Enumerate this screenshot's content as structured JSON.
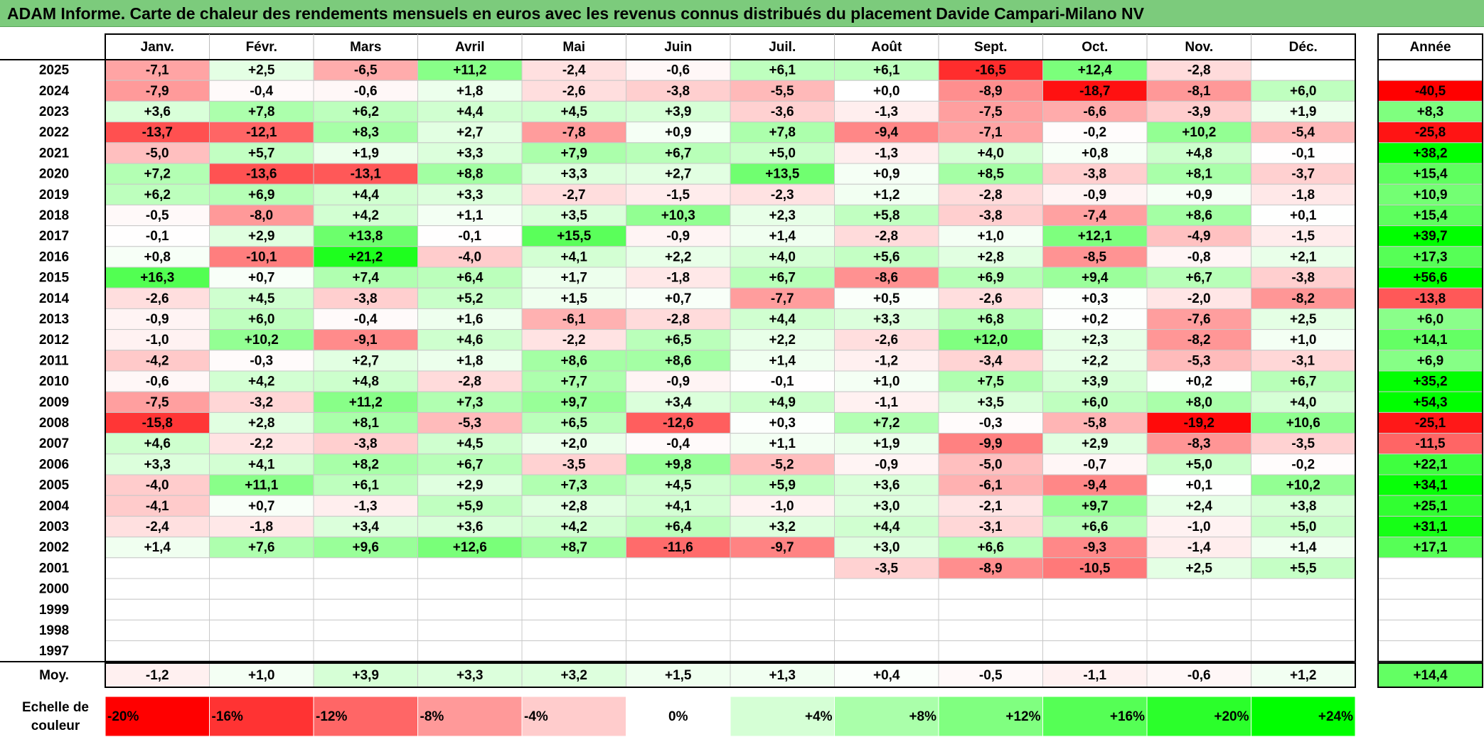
{
  "title": "ADAM Informe. Carte de chaleur des rendements mensuels en euros avec les revenus connus distribués du placement Davide Campari-Milano NV",
  "chart_data": {
    "type": "heatmap",
    "months": [
      "Janv.",
      "Févr.",
      "Mars",
      "Avril",
      "Mai",
      "Juin",
      "Juil.",
      "Août",
      "Sept.",
      "Oct.",
      "Nov.",
      "Déc."
    ],
    "year_label": "Année",
    "rows": [
      {
        "year": "2025",
        "values": [
          -7.1,
          2.5,
          -6.5,
          11.2,
          -2.4,
          -0.6,
          6.1,
          6.1,
          -16.5,
          12.4,
          -2.8,
          null
        ],
        "annual": null
      },
      {
        "year": "2024",
        "values": [
          -7.9,
          -0.4,
          -0.6,
          1.8,
          -2.6,
          -3.8,
          -5.5,
          0.0,
          -8.9,
          -18.7,
          -8.1,
          6.0
        ],
        "annual": -40.5
      },
      {
        "year": "2023",
        "values": [
          3.6,
          7.8,
          6.2,
          4.4,
          4.5,
          3.9,
          -3.6,
          -1.3,
          -7.5,
          -6.6,
          -3.9,
          1.9
        ],
        "annual": 8.3
      },
      {
        "year": "2022",
        "values": [
          -13.7,
          -12.1,
          8.3,
          2.7,
          -7.8,
          0.9,
          7.8,
          -9.4,
          -7.1,
          -0.2,
          10.2,
          -5.4
        ],
        "annual": -25.8
      },
      {
        "year": "2021",
        "values": [
          -5.0,
          5.7,
          1.9,
          3.3,
          7.9,
          6.7,
          5.0,
          -1.3,
          4.0,
          0.8,
          4.8,
          -0.1
        ],
        "annual": 38.2
      },
      {
        "year": "2020",
        "values": [
          7.2,
          -13.6,
          -13.1,
          8.8,
          3.3,
          2.7,
          13.5,
          0.9,
          8.5,
          -3.8,
          8.1,
          -3.7
        ],
        "annual": 15.4
      },
      {
        "year": "2019",
        "values": [
          6.2,
          6.9,
          4.4,
          3.3,
          -2.7,
          -1.5,
          -2.3,
          1.2,
          -2.8,
          -0.9,
          0.9,
          -1.8
        ],
        "annual": 10.9
      },
      {
        "year": "2018",
        "values": [
          -0.5,
          -8.0,
          4.2,
          1.1,
          3.5,
          10.3,
          2.3,
          5.8,
          -3.8,
          -7.4,
          8.6,
          0.1
        ],
        "annual": 15.4
      },
      {
        "year": "2017",
        "values": [
          -0.1,
          2.9,
          13.8,
          -0.1,
          15.5,
          -0.9,
          1.4,
          -2.8,
          1.0,
          12.1,
          -4.9,
          -1.5
        ],
        "annual": 39.7
      },
      {
        "year": "2016",
        "values": [
          0.8,
          -10.1,
          21.2,
          -4.0,
          4.1,
          2.2,
          4.0,
          5.6,
          2.8,
          -8.5,
          -0.8,
          2.1
        ],
        "annual": 17.3
      },
      {
        "year": "2015",
        "values": [
          16.3,
          0.7,
          7.4,
          6.4,
          1.7,
          -1.8,
          6.7,
          -8.6,
          6.9,
          9.4,
          6.7,
          -3.8
        ],
        "annual": 56.6
      },
      {
        "year": "2014",
        "values": [
          -2.6,
          4.5,
          -3.8,
          5.2,
          1.5,
          0.7,
          -7.7,
          0.5,
          -2.6,
          0.3,
          -2.0,
          -8.2
        ],
        "annual": -13.8
      },
      {
        "year": "2013",
        "values": [
          -0.9,
          6.0,
          -0.4,
          1.6,
          -6.1,
          -2.8,
          4.4,
          3.3,
          6.8,
          0.2,
          -7.6,
          2.5
        ],
        "annual": 6.0
      },
      {
        "year": "2012",
        "values": [
          -1.0,
          10.2,
          -9.1,
          4.6,
          -2.2,
          6.5,
          2.2,
          -2.6,
          12.0,
          2.3,
          -8.2,
          1.0
        ],
        "annual": 14.1
      },
      {
        "year": "2011",
        "values": [
          -4.2,
          -0.3,
          2.7,
          1.8,
          8.6,
          8.6,
          1.4,
          -1.2,
          -3.4,
          2.2,
          -5.3,
          -3.1
        ],
        "annual": 6.9
      },
      {
        "year": "2010",
        "values": [
          -0.6,
          4.2,
          4.8,
          -2.8,
          7.7,
          -0.9,
          -0.1,
          1.0,
          7.5,
          3.9,
          0.2,
          6.7
        ],
        "annual": 35.2
      },
      {
        "year": "2009",
        "values": [
          -7.5,
          -3.2,
          11.2,
          7.3,
          9.7,
          3.4,
          4.9,
          -1.1,
          3.5,
          6.0,
          8.0,
          4.0
        ],
        "annual": 54.3
      },
      {
        "year": "2008",
        "values": [
          -15.8,
          2.8,
          8.1,
          -5.3,
          6.5,
          -12.6,
          0.3,
          7.2,
          -0.3,
          -5.8,
          -19.2,
          10.6
        ],
        "annual": -25.1
      },
      {
        "year": "2007",
        "values": [
          4.6,
          -2.2,
          -3.8,
          4.5,
          2.0,
          -0.4,
          1.1,
          1.9,
          -9.9,
          2.9,
          -8.3,
          -3.5
        ],
        "annual": -11.5
      },
      {
        "year": "2006",
        "values": [
          3.3,
          4.1,
          8.2,
          6.7,
          -3.5,
          9.8,
          -5.2,
          -0.9,
          -5.0,
          -0.7,
          5.0,
          -0.2
        ],
        "annual": 22.1
      },
      {
        "year": "2005",
        "values": [
          -4.0,
          11.1,
          6.1,
          2.9,
          7.3,
          4.5,
          5.9,
          3.6,
          -6.1,
          -9.4,
          0.1,
          10.2
        ],
        "annual": 34.1
      },
      {
        "year": "2004",
        "values": [
          -4.1,
          0.7,
          -1.3,
          5.9,
          2.8,
          4.1,
          -1.0,
          3.0,
          -2.1,
          9.7,
          2.4,
          3.8
        ],
        "annual": 25.1
      },
      {
        "year": "2003",
        "values": [
          -2.4,
          -1.8,
          3.4,
          3.6,
          4.2,
          6.4,
          3.2,
          4.4,
          -3.1,
          6.6,
          -1.0,
          5.0
        ],
        "annual": 31.1
      },
      {
        "year": "2002",
        "values": [
          1.4,
          7.6,
          9.6,
          12.6,
          8.7,
          -11.6,
          -9.7,
          3.0,
          6.6,
          -9.3,
          -1.4,
          1.4
        ],
        "annual": 17.1
      },
      {
        "year": "2001",
        "values": [
          null,
          null,
          null,
          null,
          null,
          null,
          null,
          -3.5,
          -8.9,
          -10.5,
          2.5,
          5.5
        ],
        "annual": null
      },
      {
        "year": "2000",
        "values": [
          null,
          null,
          null,
          null,
          null,
          null,
          null,
          null,
          null,
          null,
          null,
          null
        ],
        "annual": null
      },
      {
        "year": "1999",
        "values": [
          null,
          null,
          null,
          null,
          null,
          null,
          null,
          null,
          null,
          null,
          null,
          null
        ],
        "annual": null
      },
      {
        "year": "1998",
        "values": [
          null,
          null,
          null,
          null,
          null,
          null,
          null,
          null,
          null,
          null,
          null,
          null
        ],
        "annual": null
      },
      {
        "year": "1997",
        "values": [
          null,
          null,
          null,
          null,
          null,
          null,
          null,
          null,
          null,
          null,
          null,
          null
        ],
        "annual": null
      }
    ],
    "average": {
      "label": "Moy.",
      "values": [
        -1.2,
        1.0,
        3.9,
        3.3,
        3.2,
        1.5,
        1.3,
        0.4,
        -0.5,
        -1.1,
        -0.6,
        1.2
      ],
      "annual": 14.4
    },
    "scale": {
      "label_line1": "Echelle de",
      "label_line2": "couleur",
      "steps": [
        {
          "label": "-20%",
          "value": -20
        },
        {
          "label": "-16%",
          "value": -16
        },
        {
          "label": "-12%",
          "value": -12
        },
        {
          "label": "-8%",
          "value": -8
        },
        {
          "label": "-4%",
          "value": -4
        },
        {
          "label": "0%",
          "value": 0
        },
        {
          "label": "+4%",
          "value": 4
        },
        {
          "label": "+8%",
          "value": 8
        },
        {
          "label": "+12%",
          "value": 12
        },
        {
          "label": "+16%",
          "value": 16
        },
        {
          "label": "+20%",
          "value": 20
        },
        {
          "label": "+24%",
          "value": 24
        }
      ]
    },
    "colors": {
      "negative_max": "#ff0000",
      "neutral": "#ffffff",
      "positive_max": "#00ff00",
      "title_background": "#7ccb7c"
    }
  }
}
